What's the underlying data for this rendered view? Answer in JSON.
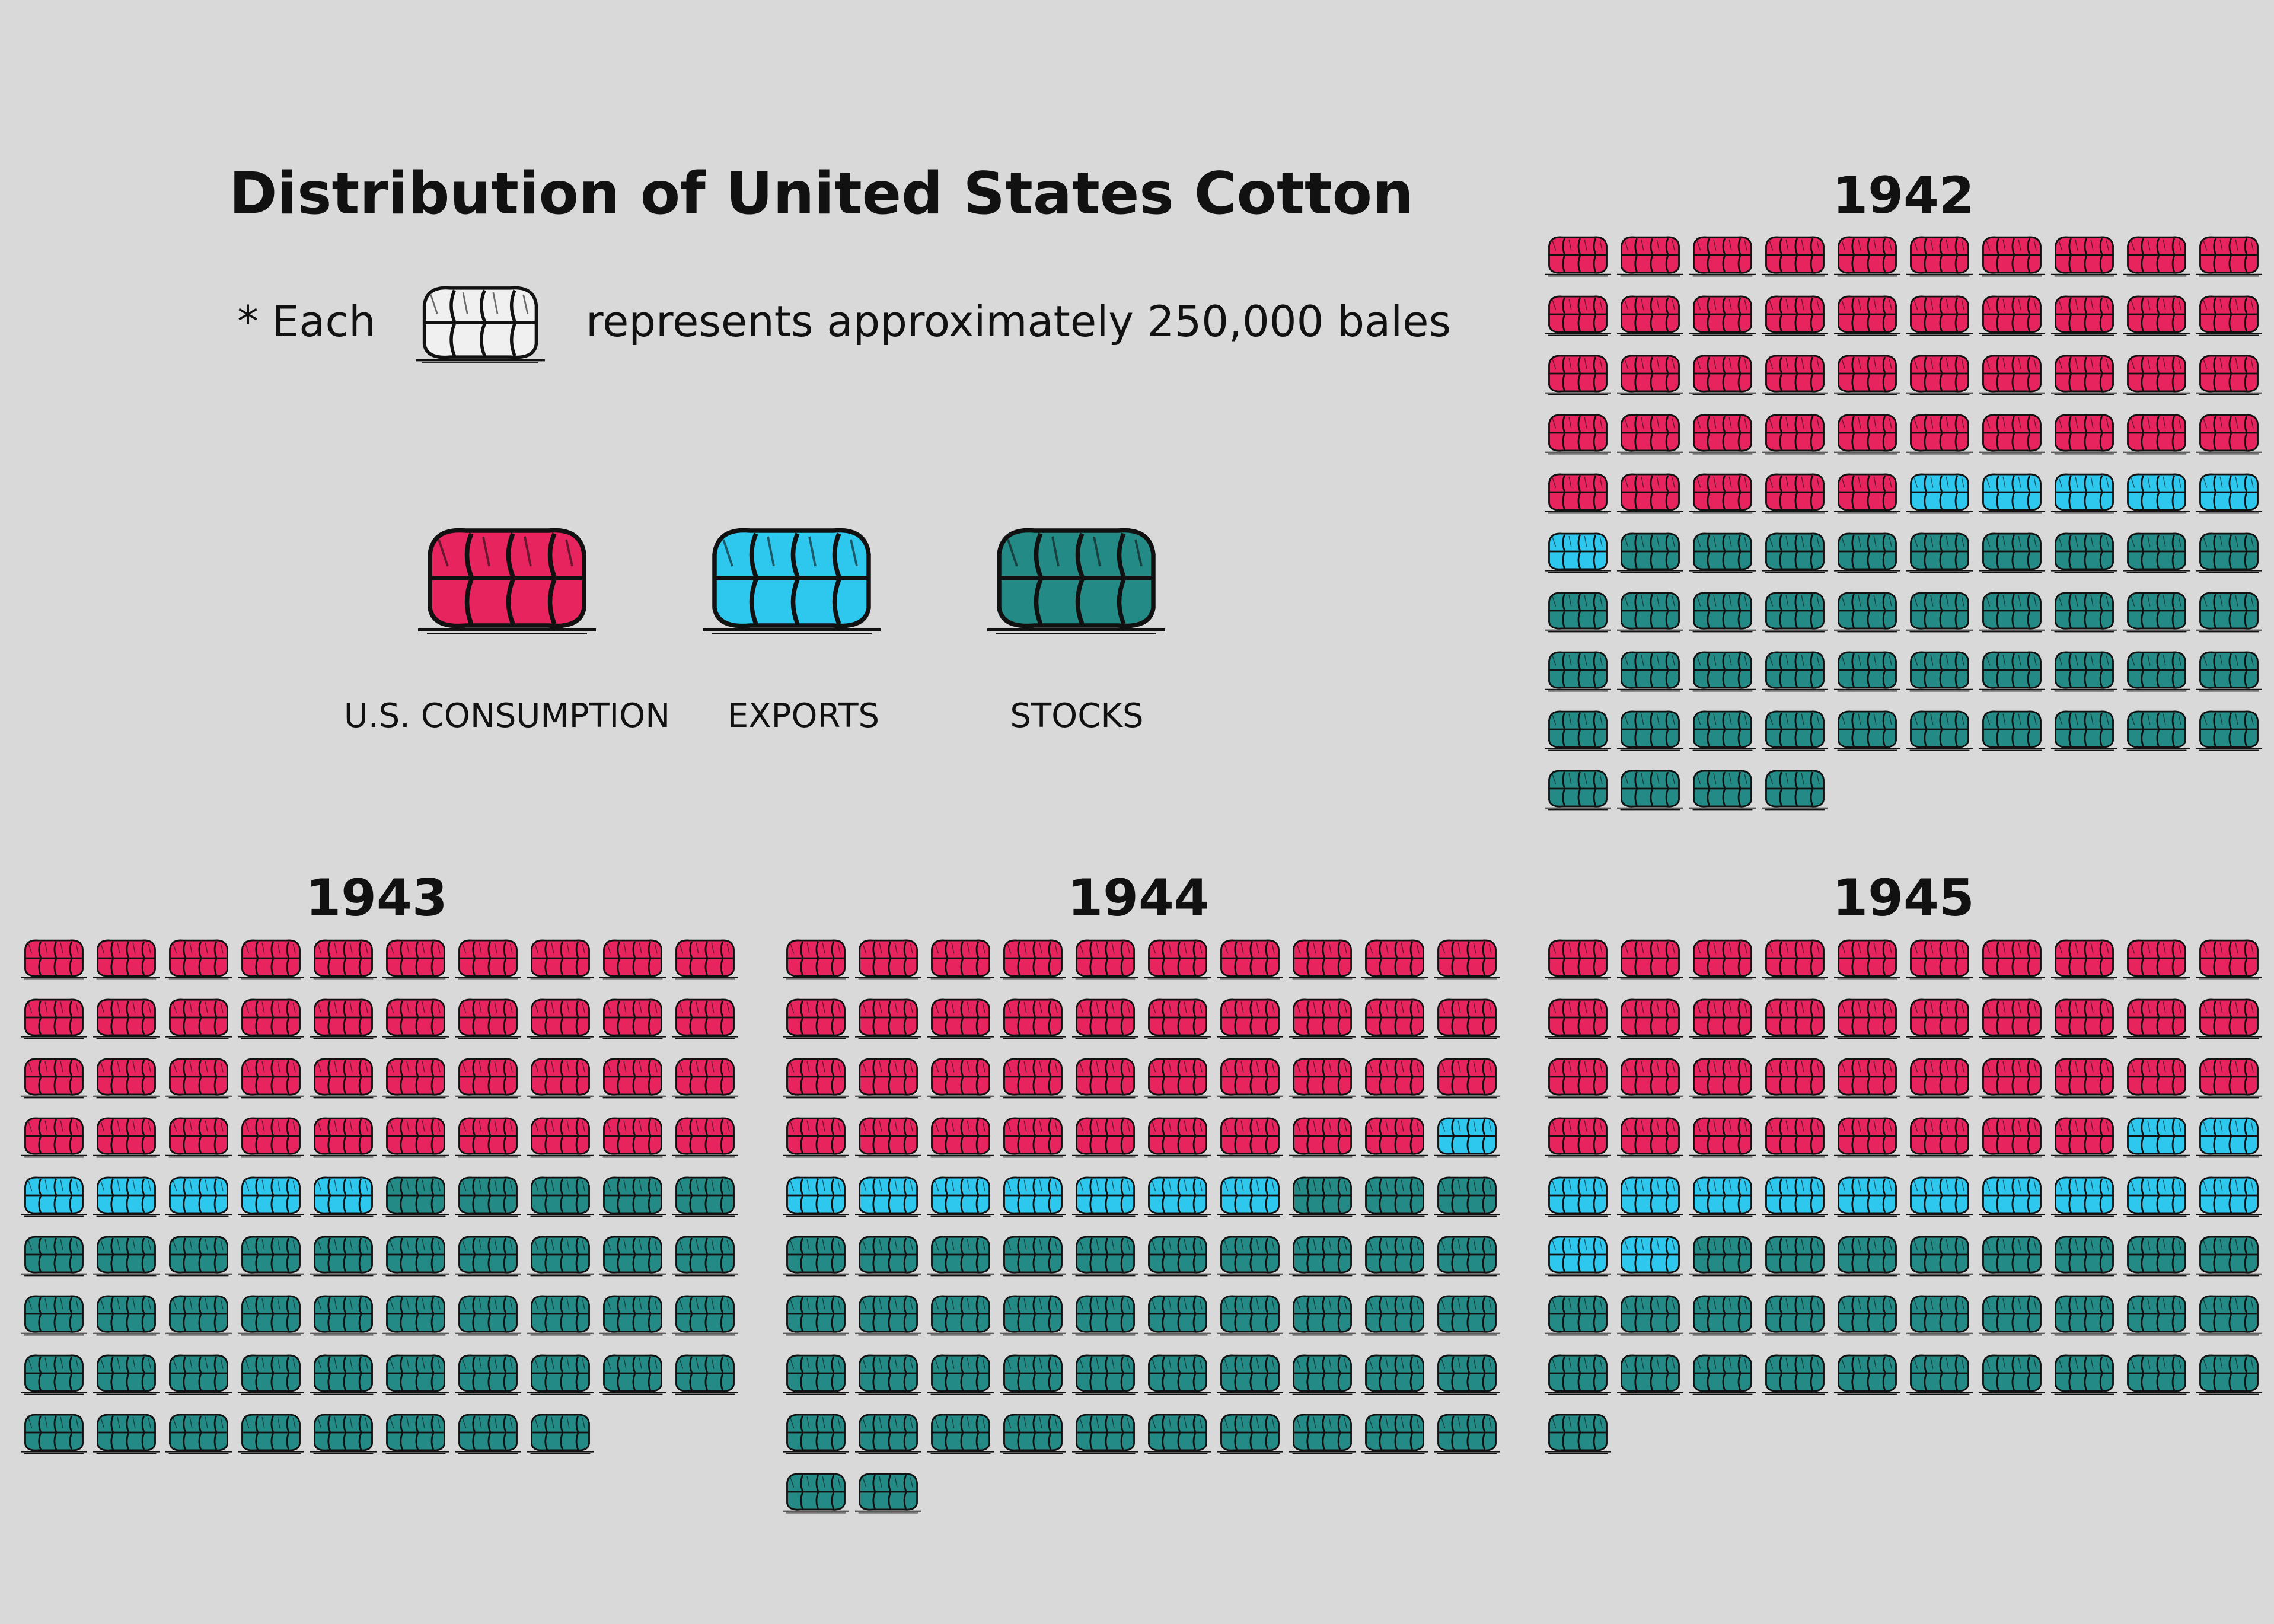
{
  "title": "Distribution of United States Cotton",
  "note": {
    "prefix": "* Each",
    "suffix": "represents approximately 250,000 bales"
  },
  "legend": [
    {
      "label": "U.S. CONSUMPTION",
      "color": "#e8245e"
    },
    {
      "label": "EXPORTS",
      "color": "#2ec7ee"
    },
    {
      "label": "STOCKS",
      "color": "#238a86"
    }
  ],
  "chart_data": {
    "type": "pictograph",
    "unit": "bales",
    "unit_value": 250000,
    "series": [
      "U.S. CONSUMPTION",
      "EXPORTS",
      "STOCKS"
    ],
    "years": [
      {
        "year": "1942",
        "values": [
          45,
          6,
          43
        ]
      },
      {
        "year": "1943",
        "values": [
          40,
          5,
          43
        ]
      },
      {
        "year": "1944",
        "values": [
          39,
          8,
          45
        ]
      },
      {
        "year": "1945",
        "values": [
          38,
          14,
          29
        ]
      }
    ]
  }
}
